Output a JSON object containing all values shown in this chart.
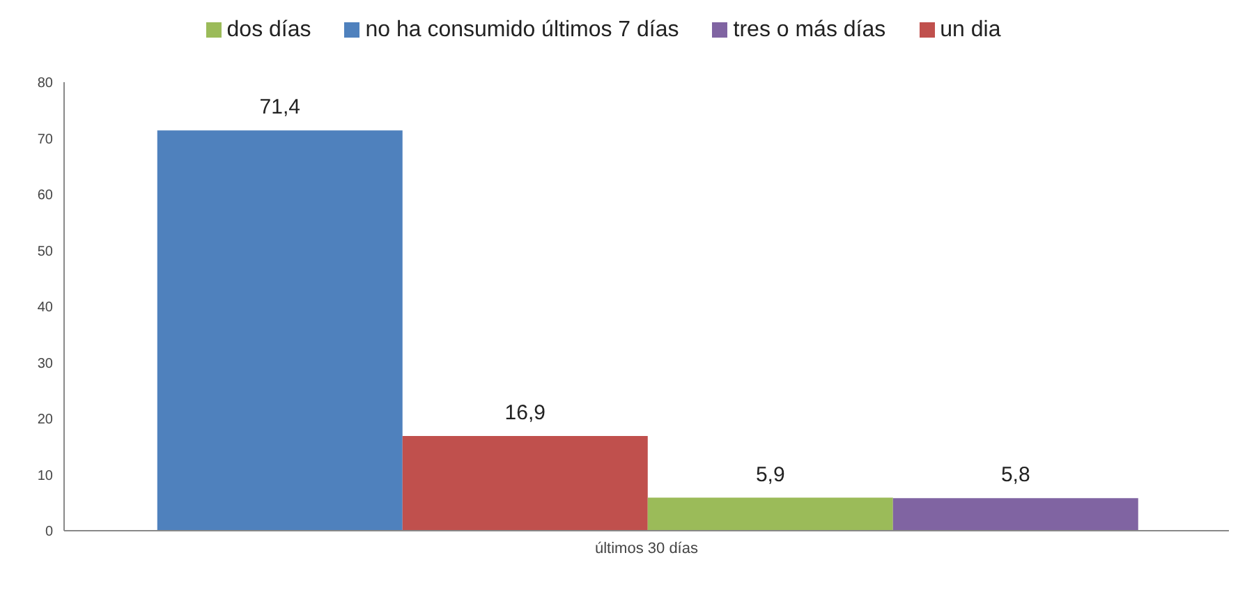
{
  "chart_data": {
    "type": "bar",
    "categories": [
      "últimos 30 días"
    ],
    "series": [
      {
        "name": "no ha consumido últimos 7 días",
        "color": "#4f81bd",
        "values": [
          71.4
        ],
        "value_labels": [
          "71,4"
        ]
      },
      {
        "name": "un dia",
        "color": "#c0504d",
        "values": [
          16.9
        ],
        "value_labels": [
          "16,9"
        ]
      },
      {
        "name": "dos días",
        "color": "#9bbb59",
        "values": [
          5.9
        ],
        "value_labels": [
          "5,9"
        ]
      },
      {
        "name": "tres o más días",
        "color": "#8064a2",
        "values": [
          5.8
        ],
        "value_labels": [
          "5,8"
        ]
      }
    ],
    "ylim": [
      0,
      80
    ],
    "yticks": [
      0,
      10,
      20,
      30,
      40,
      50,
      60,
      70,
      80
    ],
    "grid": false,
    "legend": "top"
  }
}
